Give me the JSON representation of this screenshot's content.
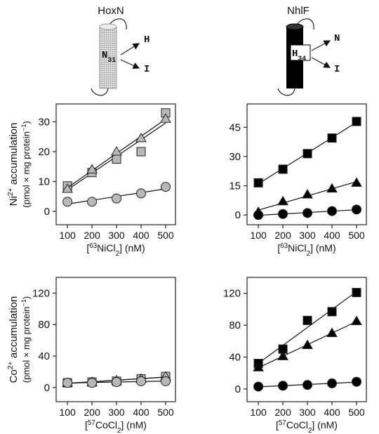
{
  "diagrams": [
    {
      "title": "HoxN",
      "residue": [
        {
          "text": "N"
        },
        {
          "text": "31",
          "sub": true
        }
      ],
      "branches": [
        "H",
        "I"
      ]
    },
    {
      "title": "NhlF",
      "residue": [
        {
          "text": "H"
        },
        {
          "text": "34",
          "sub": true
        }
      ],
      "branches": [
        "N",
        "I"
      ]
    }
  ],
  "chart_data": [
    {
      "type": "scatter",
      "fit_lines": true,
      "x": [
        100,
        200,
        300,
        400,
        500
      ],
      "xlim": [
        54,
        540
      ],
      "ylim": [
        -4.5,
        36
      ],
      "xticks": [
        100,
        200,
        300,
        400,
        500
      ],
      "yticks": [
        0,
        10,
        20,
        30
      ],
      "ylabel": [
        [
          {
            "text": "Ni"
          },
          {
            "text": "2+",
            "sup": true
          },
          {
            "text": " accumulation"
          }
        ],
        [
          {
            "text": "(pmol × mg protein"
          },
          {
            "text": "−1",
            "sup": true
          },
          {
            "text": ")"
          }
        ]
      ],
      "xlabel": [
        {
          "text": "["
        },
        {
          "text": "63",
          "sup": true
        },
        {
          "text": "NiCl"
        },
        {
          "text": "2",
          "sub": true
        },
        {
          "text": "] (nM)"
        }
      ],
      "series": [
        {
          "marker": "square",
          "color": "#b8b8b8",
          "values": [
            8.5,
            13,
            17.5,
            20,
            33
          ]
        },
        {
          "marker": "triangle",
          "color": "#b8b8b8",
          "values": [
            7.5,
            14,
            20,
            24.5,
            31
          ]
        },
        {
          "marker": "circle",
          "color": "#b8b8b8",
          "values": [
            3.2,
            3.2,
            4.3,
            6,
            8.2
          ]
        }
      ]
    },
    {
      "type": "scatter",
      "fit_lines": true,
      "x": [
        100,
        200,
        300,
        400,
        500
      ],
      "xlim": [
        54,
        540
      ],
      "ylim": [
        -5,
        57
      ],
      "xticks": [
        100,
        200,
        300,
        400,
        500
      ],
      "yticks": [
        0,
        15,
        30,
        45
      ],
      "xlabel": [
        {
          "text": "["
        },
        {
          "text": "63",
          "sup": true
        },
        {
          "text": "NiCl"
        },
        {
          "text": "2",
          "sub": true
        },
        {
          "text": "] (nM)"
        }
      ],
      "series": [
        {
          "marker": "square",
          "color": "#000000",
          "values": [
            16.5,
            23.5,
            31.5,
            39.5,
            48
          ]
        },
        {
          "marker": "triangle",
          "color": "#000000",
          "values": [
            1.5,
            7,
            10.5,
            13.5,
            16.5
          ]
        },
        {
          "marker": "circle",
          "color": "#000000",
          "values": [
            0,
            0.5,
            1,
            2,
            2.8
          ]
        }
      ]
    },
    {
      "type": "scatter",
      "fit_lines": true,
      "x": [
        100,
        200,
        300,
        400,
        500
      ],
      "xlim": [
        54,
        540
      ],
      "ylim": [
        -18,
        140
      ],
      "xticks": [
        100,
        200,
        300,
        400,
        500
      ],
      "yticks": [
        0,
        40,
        80,
        120
      ],
      "ylabel": [
        [
          {
            "text": "Co"
          },
          {
            "text": "2+",
            "sup": true
          },
          {
            "text": " accumulation"
          }
        ],
        [
          {
            "text": "(pmol × mg protein"
          },
          {
            "text": "−1",
            "sup": true
          },
          {
            "text": ")"
          }
        ]
      ],
      "xlabel": [
        {
          "text": "["
        },
        {
          "text": "57",
          "sup": true
        },
        {
          "text": "CoCl"
        },
        {
          "text": "2",
          "sub": true
        },
        {
          "text": "] (nM)"
        }
      ],
      "series": [
        {
          "marker": "square",
          "color": "#b8b8b8",
          "values": [
            6,
            7,
            8,
            11,
            14
          ]
        },
        {
          "marker": "triangle",
          "color": "#b8b8b8",
          "values": [
            6,
            7,
            9,
            11,
            14
          ]
        },
        {
          "marker": "circle",
          "color": "#b8b8b8",
          "values": [
            6,
            6,
            7,
            8,
            8
          ]
        }
      ]
    },
    {
      "type": "scatter",
      "fit_lines": true,
      "x": [
        100,
        200,
        300,
        400,
        500
      ],
      "xlim": [
        54,
        540
      ],
      "ylim": [
        -16,
        140
      ],
      "xticks": [
        100,
        200,
        300,
        400,
        500
      ],
      "yticks": [
        0,
        40,
        80,
        120
      ],
      "xlabel": [
        {
          "text": "["
        },
        {
          "text": "57",
          "sup": true
        },
        {
          "text": "CoCl"
        },
        {
          "text": "2",
          "sub": true
        },
        {
          "text": "] (nM)"
        }
      ],
      "series": [
        {
          "marker": "square",
          "color": "#000000",
          "values": [
            32,
            50,
            86,
            97,
            121
          ]
        },
        {
          "marker": "triangle",
          "color": "#000000",
          "values": [
            27,
            41,
            55,
            70,
            85
          ]
        },
        {
          "marker": "circle",
          "color": "#000000",
          "values": [
            3,
            4,
            5,
            7,
            9
          ]
        }
      ]
    }
  ]
}
